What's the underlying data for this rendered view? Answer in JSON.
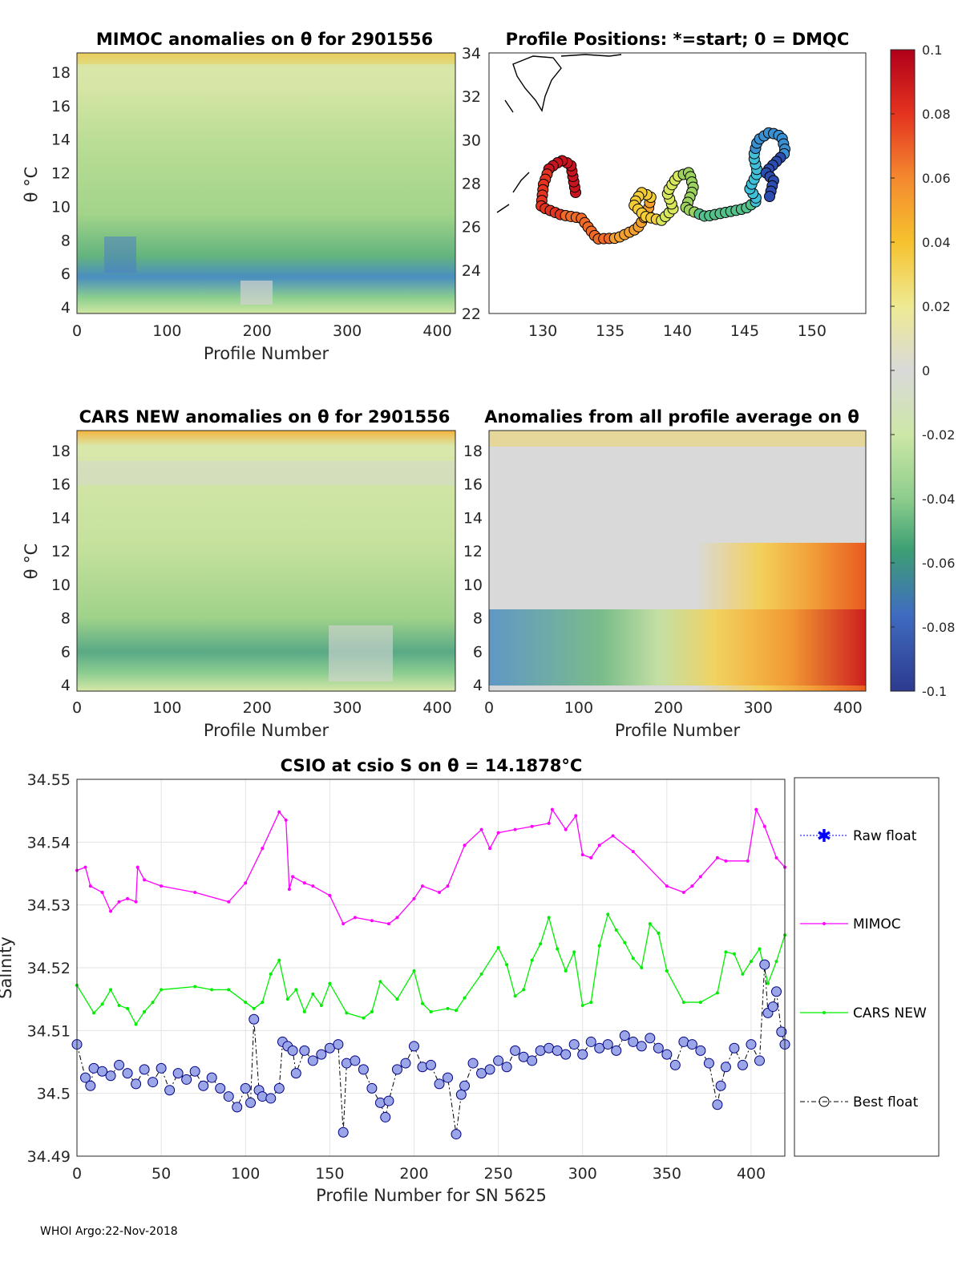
{
  "footer": "WHOI Argo:22-Nov-2018",
  "colorbar": {
    "ticks": [
      "0.1",
      "0.08",
      "0.06",
      "0.04",
      "0.02",
      "0",
      "-0.02",
      "-0.04",
      "-0.06",
      "-0.08",
      "-0.1"
    ]
  },
  "panels": {
    "mimoc": {
      "title": "MIMOC anomalies on θ  for 2901556",
      "ylabel": "θ °C",
      "xlabel": "Profile Number",
      "yticks": [
        "18",
        "16",
        "14",
        "12",
        "10",
        "8",
        "6",
        "4"
      ],
      "xticks": [
        "0",
        "100",
        "200",
        "300",
        "400"
      ]
    },
    "positions": {
      "title": "Profile Positions: *=start; 0 = DMQC",
      "yticks": [
        "34",
        "32",
        "30",
        "28",
        "26",
        "24",
        "22"
      ],
      "xticks": [
        "130",
        "135",
        "140",
        "145",
        "150"
      ]
    },
    "cars": {
      "title": "CARS NEW anomalies on θ for 2901556",
      "ylabel": "θ °C",
      "xlabel": "Profile Number",
      "yticks": [
        "18",
        "16",
        "14",
        "12",
        "10",
        "8",
        "6",
        "4"
      ],
      "xticks": [
        "0",
        "100",
        "200",
        "300",
        "400"
      ]
    },
    "avg": {
      "title": "Anomalies from all profile average on θ",
      "xlabel": "Profile Number",
      "yticks": [
        "18",
        "16",
        "14",
        "12",
        "10",
        "8",
        "6",
        "4"
      ],
      "xticks": [
        "0",
        "100",
        "200",
        "300",
        "400"
      ]
    }
  },
  "legend": {
    "raw": "Raw float",
    "mimoc": "MIMOC",
    "cars": "CARS NEW",
    "best": "Best float"
  },
  "colors": {
    "mimoc": "#ff00ff",
    "cars": "#00ee00",
    "best": "#000080",
    "raw": "#0000ff"
  },
  "chart_data": {
    "type": "line",
    "title": "CSIO at csio S on θ = 14.1878°C",
    "xlabel": "Profile Number for SN 5625",
    "ylabel": "Salinity",
    "xlim": [
      0,
      420
    ],
    "ylim": [
      34.49,
      34.55
    ],
    "xticks": [
      "0",
      "50",
      "100",
      "150",
      "200",
      "250",
      "300",
      "350",
      "400"
    ],
    "yticks": [
      "34.55",
      "34.54",
      "34.53",
      "34.52",
      "34.51",
      "34.5",
      "34.49"
    ],
    "series": [
      {
        "name": "MIMOC",
        "color": "#ff00ff",
        "x": [
          0,
          5,
          8,
          15,
          20,
          25,
          30,
          35,
          36,
          40,
          50,
          70,
          90,
          100,
          110,
          120,
          124,
          126,
          128,
          135,
          140,
          150,
          158,
          165,
          175,
          185,
          190,
          200,
          205,
          215,
          220,
          230,
          240,
          245,
          250,
          260,
          270,
          280,
          282,
          290,
          296,
          300,
          305,
          310,
          318,
          330,
          350,
          360,
          365,
          370,
          380,
          385,
          398,
          403,
          408,
          415,
          420
        ],
        "values": [
          34.5355,
          34.536,
          34.533,
          34.532,
          34.529,
          34.5305,
          34.531,
          34.5305,
          34.536,
          34.534,
          34.533,
          34.532,
          34.5305,
          34.5335,
          34.539,
          34.5448,
          34.5435,
          34.5325,
          34.5345,
          34.5335,
          34.533,
          34.5315,
          34.527,
          34.528,
          34.5275,
          34.527,
          34.528,
          34.531,
          34.533,
          34.532,
          34.533,
          34.5395,
          34.542,
          34.539,
          34.5415,
          34.542,
          34.5425,
          34.543,
          34.5452,
          34.542,
          34.5442,
          34.538,
          34.5375,
          34.5395,
          34.541,
          34.5385,
          34.533,
          34.532,
          34.533,
          34.5345,
          34.5375,
          34.537,
          34.537,
          34.5452,
          34.5425,
          34.5375,
          34.536
        ]
      },
      {
        "name": "CARS NEW",
        "color": "#00ee00",
        "x": [
          0,
          10,
          15,
          20,
          25,
          30,
          35,
          40,
          45,
          50,
          70,
          80,
          90,
          100,
          105,
          110,
          115,
          120,
          125,
          130,
          135,
          140,
          145,
          150,
          160,
          170,
          175,
          180,
          190,
          200,
          205,
          210,
          220,
          225,
          230,
          240,
          250,
          255,
          260,
          265,
          270,
          275,
          280,
          285,
          290,
          295,
          300,
          305,
          310,
          315,
          320,
          325,
          330,
          335,
          340,
          345,
          350,
          360,
          370,
          380,
          385,
          390,
          395,
          400,
          405,
          410,
          415,
          420
        ],
        "values": [
          34.5172,
          34.5128,
          34.5142,
          34.5165,
          34.514,
          34.5135,
          34.511,
          34.513,
          34.5145,
          34.5165,
          34.517,
          34.5165,
          34.5165,
          34.5145,
          34.5135,
          34.5145,
          34.519,
          34.5212,
          34.515,
          34.5165,
          34.513,
          34.5158,
          34.514,
          34.5175,
          34.5128,
          34.512,
          34.513,
          34.5178,
          34.515,
          34.5195,
          34.5143,
          34.513,
          34.5135,
          34.5132,
          34.5152,
          34.519,
          34.5232,
          34.5205,
          34.5155,
          34.5165,
          34.5212,
          34.5238,
          34.528,
          34.523,
          34.5195,
          34.5225,
          34.514,
          34.5145,
          34.5235,
          34.5285,
          34.526,
          34.524,
          34.5215,
          34.52,
          34.527,
          34.5255,
          34.5195,
          34.5145,
          34.5145,
          34.516,
          34.5225,
          34.5222,
          34.519,
          34.521,
          34.523,
          34.5175,
          34.521,
          34.5252
        ]
      },
      {
        "name": "Best float",
        "color": "#000080",
        "x": [
          0,
          5,
          8,
          10,
          15,
          20,
          25,
          30,
          35,
          40,
          45,
          50,
          55,
          60,
          65,
          70,
          75,
          80,
          85,
          90,
          95,
          100,
          103,
          105,
          108,
          110,
          115,
          120,
          122,
          125,
          128,
          130,
          135,
          140,
          145,
          150,
          155,
          158,
          160,
          165,
          170,
          175,
          180,
          183,
          185,
          190,
          195,
          200,
          205,
          210,
          215,
          220,
          225,
          228,
          230,
          235,
          240,
          245,
          250,
          255,
          260,
          265,
          270,
          275,
          280,
          285,
          290,
          295,
          300,
          305,
          310,
          315,
          320,
          325,
          330,
          335,
          340,
          345,
          350,
          355,
          360,
          365,
          370,
          375,
          380,
          382,
          385,
          390,
          395,
          400,
          405,
          408,
          410,
          413,
          415,
          418,
          420
        ],
        "values": [
          34.5078,
          34.5025,
          34.5012,
          34.504,
          34.5035,
          34.5028,
          34.5045,
          34.5032,
          34.5015,
          34.5038,
          34.5018,
          34.504,
          34.5005,
          34.5032,
          34.5022,
          34.5035,
          34.5012,
          34.5025,
          34.5008,
          34.4995,
          34.4978,
          34.5008,
          34.4985,
          34.5118,
          34.5005,
          34.4995,
          34.4992,
          34.5008,
          34.5082,
          34.5075,
          34.5068,
          34.5032,
          34.5068,
          34.5052,
          34.5062,
          34.5072,
          34.5078,
          34.4938,
          34.5048,
          34.5052,
          34.5038,
          34.5008,
          34.4985,
          34.4962,
          34.4988,
          34.5038,
          34.5048,
          34.5075,
          34.5042,
          34.5045,
          34.5015,
          34.5025,
          34.4935,
          34.4998,
          34.5012,
          34.5048,
          34.5032,
          34.5038,
          34.5052,
          34.5042,
          34.5068,
          34.5058,
          34.5052,
          34.5068,
          34.5072,
          34.5068,
          34.5062,
          34.5078,
          34.5062,
          34.5082,
          34.5072,
          34.5078,
          34.5068,
          34.5092,
          34.5082,
          34.5075,
          34.5088,
          34.5072,
          34.5062,
          34.5045,
          34.5082,
          34.5078,
          34.5068,
          34.5048,
          34.4982,
          34.5012,
          34.5042,
          34.5072,
          34.5045,
          34.5078,
          34.5052,
          34.5205,
          34.5128,
          34.5138,
          34.5162,
          34.5098,
          34.5078
        ]
      }
    ]
  }
}
